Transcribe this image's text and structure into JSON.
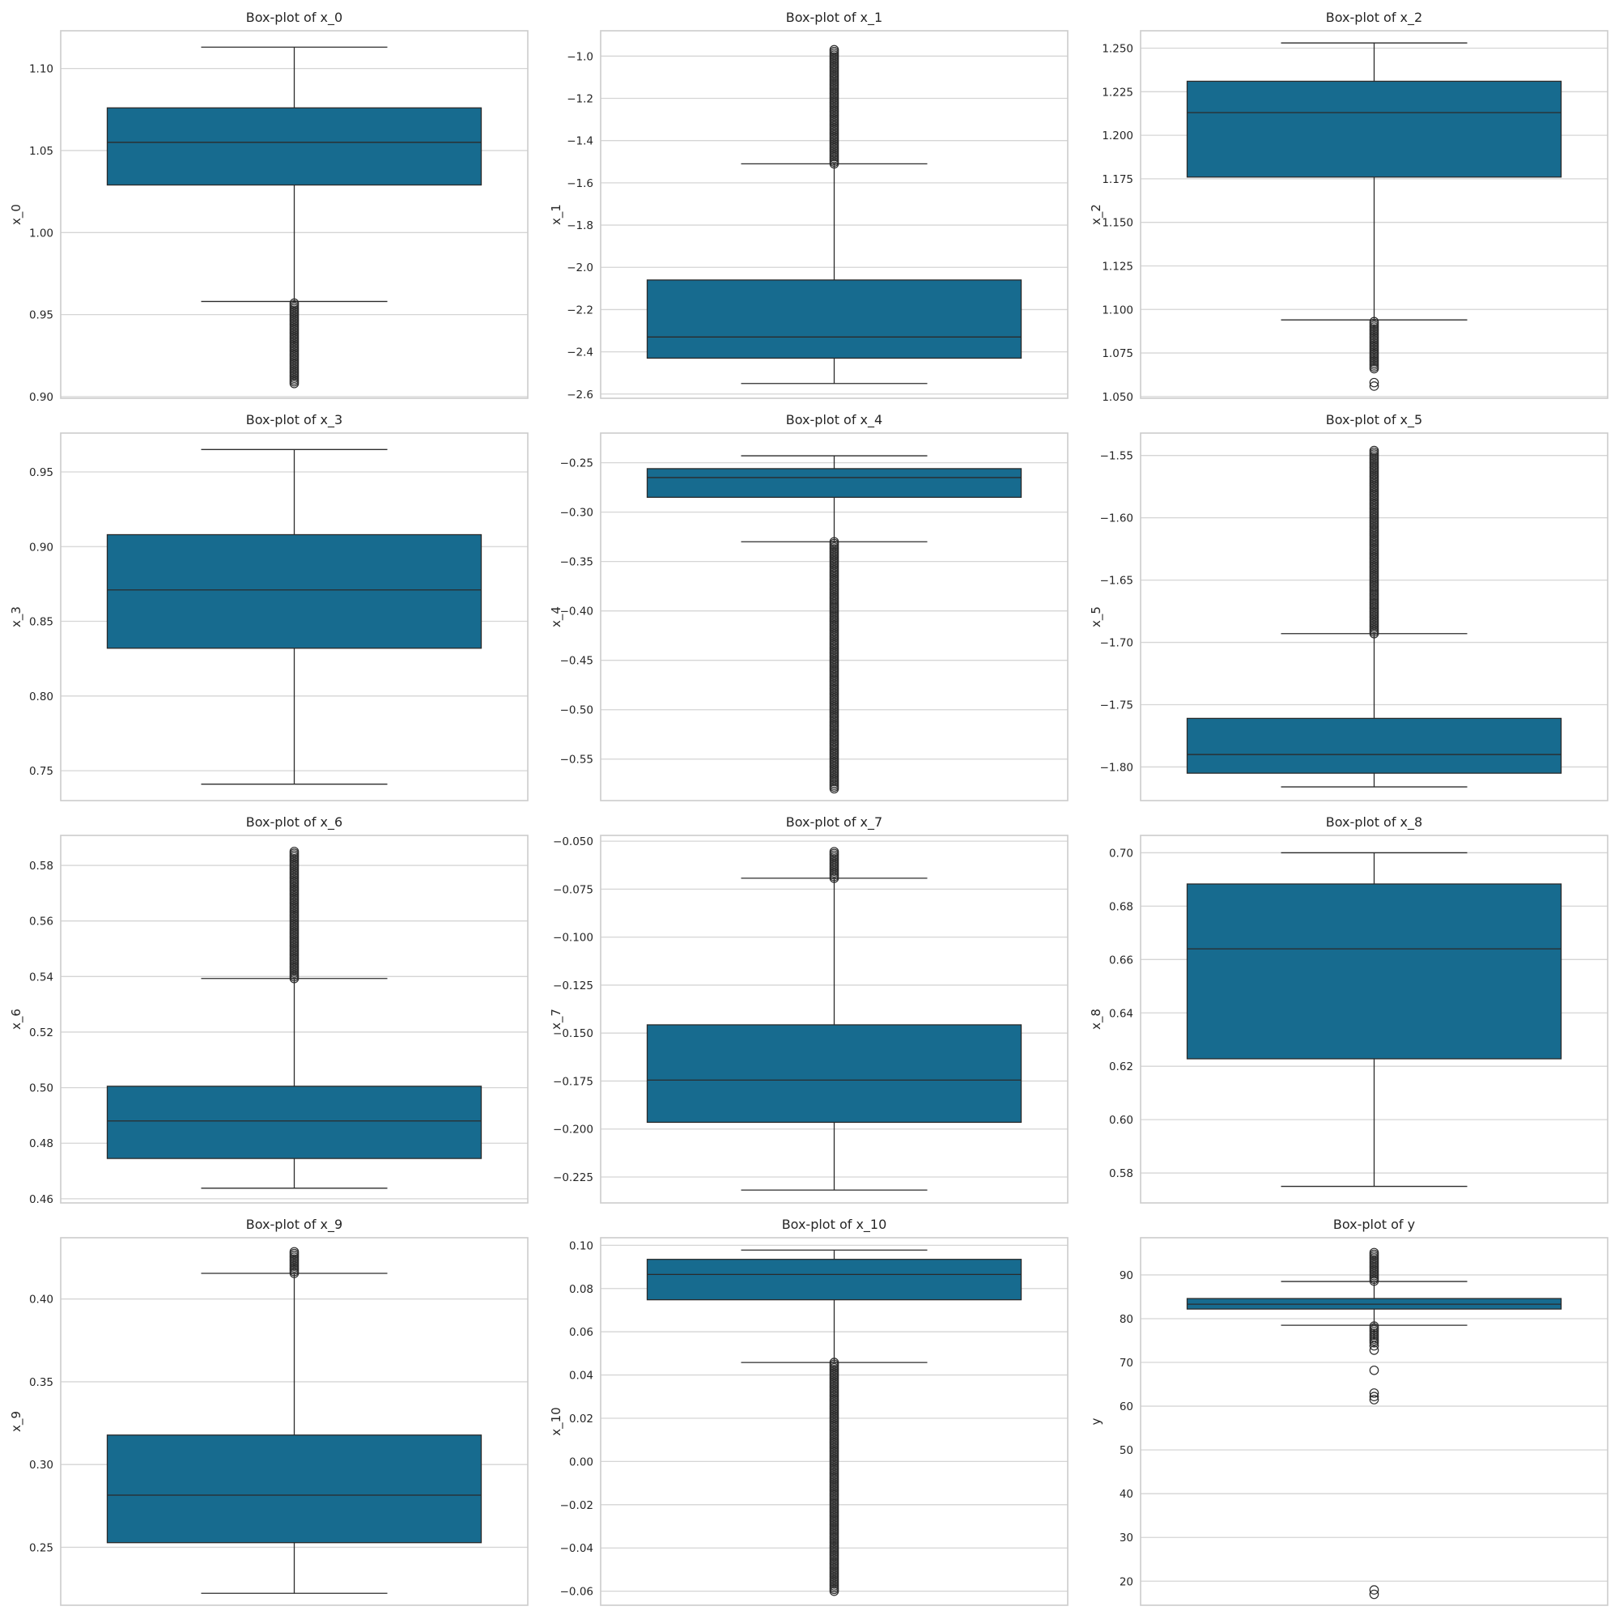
{
  "colors": {
    "box": "#176b8f",
    "line": "#2b2b2b",
    "grid": "#d5d5d5",
    "frame": "#cccccc"
  },
  "chart_data": [
    {
      "type": "box",
      "title": "Box-plot of x_0",
      "ylabel": "x_0",
      "ylim": [
        0.899,
        1.123
      ],
      "ticks": [
        0.9,
        0.95,
        1.0,
        1.05,
        1.1
      ],
      "tick_labels": [
        "0.90",
        "0.95",
        "1.00",
        "1.05",
        "1.10"
      ],
      "whisker_low": 0.958,
      "q1": 1.029,
      "median": 1.055,
      "q3": 1.076,
      "whisker_high": 1.113,
      "outlier_bands": [
        [
          0.908,
          0.957
        ]
      ],
      "outliers": []
    },
    {
      "type": "box",
      "title": "Box-plot of x_1",
      "ylabel": "x_1",
      "ylim": [
        -2.62,
        -0.88
      ],
      "ticks": [
        -2.6,
        -2.4,
        -2.2,
        -2.0,
        -1.8,
        -1.6,
        -1.4,
        -1.2,
        -1.0
      ],
      "tick_labels": [
        "−2.6",
        "−2.4",
        "−2.2",
        "−2.0",
        "−1.8",
        "−1.6",
        "−1.4",
        "−1.2",
        "−1.0"
      ],
      "whisker_low": -2.55,
      "q1": -2.43,
      "median": -2.33,
      "q3": -2.06,
      "whisker_high": -1.51,
      "outlier_bands": [
        [
          -1.51,
          -0.97
        ]
      ],
      "outliers": []
    },
    {
      "type": "box",
      "title": "Box-plot of x_2",
      "ylabel": "x_2",
      "ylim": [
        1.049,
        1.26
      ],
      "ticks": [
        1.05,
        1.075,
        1.1,
        1.125,
        1.15,
        1.175,
        1.2,
        1.225,
        1.25
      ],
      "tick_labels": [
        "1.050",
        "1.075",
        "1.100",
        "1.125",
        "1.150",
        "1.175",
        "1.200",
        "1.225",
        "1.250"
      ],
      "whisker_low": 1.094,
      "q1": 1.176,
      "median": 1.213,
      "q3": 1.231,
      "whisker_high": 1.253,
      "outlier_bands": [
        [
          1.066,
          1.093
        ]
      ],
      "outliers": [
        1.058,
        1.056
      ]
    },
    {
      "type": "box",
      "title": "Box-plot of x_3",
      "ylabel": "x_3",
      "ylim": [
        0.73,
        0.976
      ],
      "ticks": [
        0.75,
        0.8,
        0.85,
        0.9,
        0.95
      ],
      "tick_labels": [
        "0.75",
        "0.80",
        "0.85",
        "0.90",
        "0.95"
      ],
      "whisker_low": 0.741,
      "q1": 0.832,
      "median": 0.871,
      "q3": 0.908,
      "whisker_high": 0.965,
      "outlier_bands": [],
      "outliers": []
    },
    {
      "type": "box",
      "title": "Box-plot of x_4",
      "ylabel": "x_4",
      "ylim": [
        -0.592,
        -0.22
      ],
      "ticks": [
        -0.55,
        -0.5,
        -0.45,
        -0.4,
        -0.35,
        -0.3,
        -0.25
      ],
      "tick_labels": [
        "−0.55",
        "−0.50",
        "−0.45",
        "−0.40",
        "−0.35",
        "−0.30",
        "−0.25"
      ],
      "whisker_low": -0.33,
      "q1": -0.285,
      "median": -0.265,
      "q3": -0.256,
      "whisker_high": -0.243,
      "outlier_bands": [
        [
          -0.58,
          -0.33
        ]
      ],
      "outliers": []
    },
    {
      "type": "box",
      "title": "Box-plot of x_5",
      "ylabel": "x_5",
      "ylim": [
        -1.827,
        -1.532
      ],
      "ticks": [
        -1.8,
        -1.75,
        -1.7,
        -1.65,
        -1.6,
        -1.55
      ],
      "tick_labels": [
        "−1.80",
        "−1.75",
        "−1.70",
        "−1.65",
        "−1.60",
        "−1.55"
      ],
      "whisker_low": -1.816,
      "q1": -1.805,
      "median": -1.79,
      "q3": -1.761,
      "whisker_high": -1.693,
      "outlier_bands": [
        [
          -1.693,
          -1.546
        ]
      ],
      "outliers": []
    },
    {
      "type": "box",
      "title": "Box-plot of x_6",
      "ylabel": "x_6",
      "ylim": [
        0.4585,
        0.5908
      ],
      "ticks": [
        0.46,
        0.48,
        0.5,
        0.52,
        0.54,
        0.56,
        0.58
      ],
      "tick_labels": [
        "0.46",
        "0.48",
        "0.50",
        "0.52",
        "0.54",
        "0.56",
        "0.58"
      ],
      "whisker_low": 0.4638,
      "q1": 0.4745,
      "median": 0.488,
      "q3": 0.5005,
      "whisker_high": 0.5393,
      "outlier_bands": [
        [
          0.5393,
          0.585
        ]
      ],
      "outliers": []
    },
    {
      "type": "box",
      "title": "Box-plot of x_7",
      "ylabel": "x_7",
      "ylim": [
        -0.2385,
        -0.047
      ],
      "ticks": [
        -0.225,
        -0.2,
        -0.175,
        -0.15,
        -0.125,
        -0.1,
        -0.075,
        -0.05
      ],
      "tick_labels": [
        "−0.225",
        "−0.200",
        "−0.175",
        "−0.150",
        "−0.125",
        "−0.100",
        "−0.075",
        "−0.050"
      ],
      "whisker_low": -0.2318,
      "q1": -0.1965,
      "median": -0.1745,
      "q3": -0.1457,
      "whisker_high": -0.0693,
      "outlier_bands": [
        [
          -0.0693,
          -0.0555
        ]
      ],
      "outliers": []
    },
    {
      "type": "box",
      "title": "Box-plot of x_8",
      "ylabel": "x_8",
      "ylim": [
        0.5688,
        0.7065
      ],
      "ticks": [
        0.58,
        0.6,
        0.62,
        0.64,
        0.66,
        0.68,
        0.7
      ],
      "tick_labels": [
        "0.58",
        "0.60",
        "0.62",
        "0.64",
        "0.66",
        "0.68",
        "0.70"
      ],
      "whisker_low": 0.575,
      "q1": 0.6228,
      "median": 0.664,
      "q3": 0.6883,
      "whisker_high": 0.7,
      "outlier_bands": [],
      "outliers": []
    },
    {
      "type": "box",
      "title": "Box-plot of x_9",
      "ylabel": "x_9",
      "ylim": [
        0.215,
        0.437
      ],
      "ticks": [
        0.25,
        0.3,
        0.35,
        0.4
      ],
      "tick_labels": [
        "0.25",
        "0.30",
        "0.35",
        "0.40"
      ],
      "whisker_low": 0.2222,
      "q1": 0.2528,
      "median": 0.2815,
      "q3": 0.3178,
      "whisker_high": 0.4155,
      "outlier_bands": [
        [
          0.4155,
          0.4285
        ]
      ],
      "outliers": []
    },
    {
      "type": "box",
      "title": "Box-plot of x_10",
      "ylabel": "x_10",
      "ylim": [
        -0.0665,
        0.1035
      ],
      "ticks": [
        -0.06,
        -0.04,
        -0.02,
        0.0,
        0.02,
        0.04,
        0.06,
        0.08,
        0.1
      ],
      "tick_labels": [
        "−0.06",
        "−0.04",
        "−0.02",
        "0.00",
        "0.02",
        "0.04",
        "0.06",
        "0.08",
        "0.10"
      ],
      "whisker_low": 0.0458,
      "q1": 0.0748,
      "median": 0.0865,
      "q3": 0.0935,
      "whisker_high": 0.0978,
      "outlier_bands": [
        [
          -0.06,
          0.0458
        ]
      ],
      "outliers": []
    },
    {
      "type": "box",
      "title": "Box-plot of y",
      "ylabel": "y",
      "ylim": [
        14.5,
        98.5
      ],
      "ticks": [
        20,
        30,
        40,
        50,
        60,
        70,
        80,
        90
      ],
      "tick_labels": [
        "20",
        "30",
        "40",
        "50",
        "60",
        "70",
        "80",
        "90"
      ],
      "whisker_low": 78.5,
      "q1": 82.2,
      "median": 83.3,
      "q3": 84.6,
      "whisker_high": 88.5,
      "outlier_bands": [
        [
          88.6,
          95.1
        ],
        [
          74.5,
          78.3
        ]
      ],
      "outliers": [
        73.8,
        72.8,
        68.2,
        63.0,
        62.2,
        61.5,
        18.0,
        17.0
      ]
    }
  ]
}
